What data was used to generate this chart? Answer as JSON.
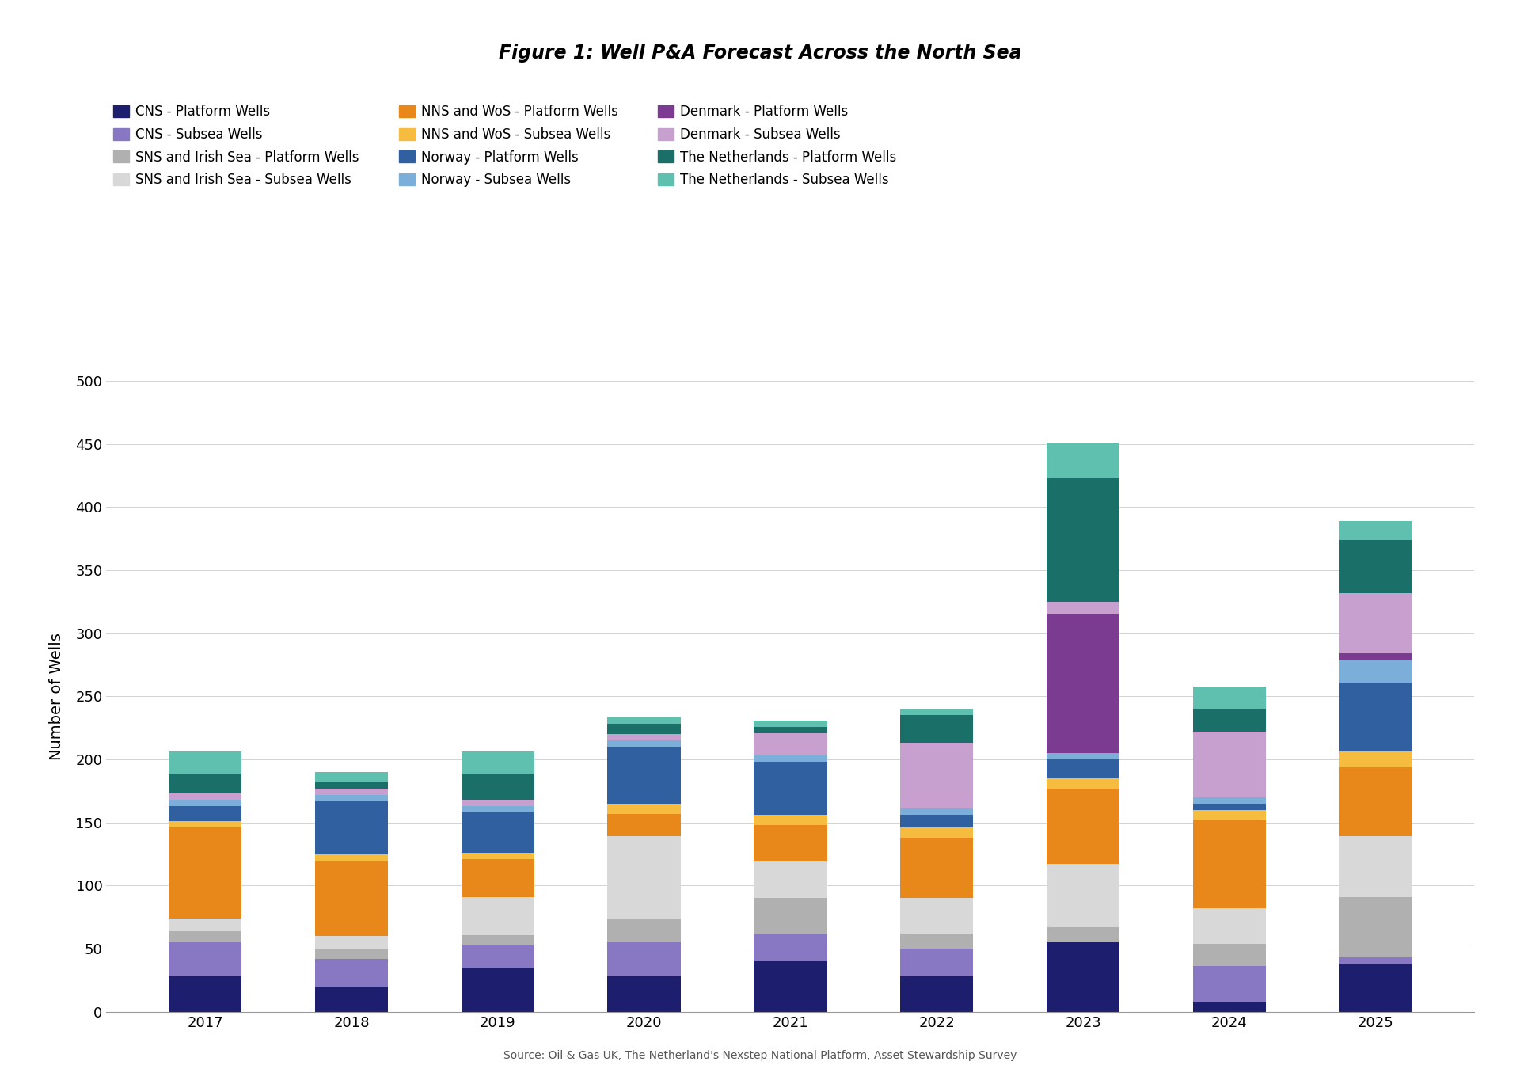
{
  "title": "Figure 1: Well P&A Forecast Across the North Sea",
  "ylabel": "Number of Wells",
  "source_text": "Source: Oil & Gas UK, The Netherland's Nexstep National Platform, Asset Stewardship Survey",
  "years": [
    2017,
    2018,
    2019,
    2020,
    2021,
    2022,
    2023,
    2024,
    2025
  ],
  "series": [
    {
      "label": "CNS - Platform Wells",
      "color": "#1e1e6e",
      "values": [
        28,
        20,
        35,
        28,
        40,
        28,
        55,
        8,
        38
      ]
    },
    {
      "label": "CNS - Subsea Wells",
      "color": "#8878c3",
      "values": [
        28,
        22,
        18,
        28,
        22,
        22,
        0,
        28,
        5
      ]
    },
    {
      "label": "SNS and Irish Sea - Platform Wells",
      "color": "#b0b0b0",
      "values": [
        8,
        8,
        8,
        18,
        28,
        12,
        12,
        18,
        48
      ]
    },
    {
      "label": "SNS and Irish Sea - Subsea Wells",
      "color": "#d8d8d8",
      "values": [
        10,
        10,
        30,
        65,
        30,
        28,
        50,
        28,
        48
      ]
    },
    {
      "label": "NNS and WoS - Platform Wells",
      "color": "#e8881a",
      "values": [
        72,
        60,
        30,
        18,
        28,
        48,
        60,
        70,
        55
      ]
    },
    {
      "label": "NNS and WoS - Subsea Wells",
      "color": "#f5bc40",
      "values": [
        5,
        5,
        5,
        8,
        8,
        8,
        8,
        8,
        12
      ]
    },
    {
      "label": "Norway - Platform Wells",
      "color": "#3060a0",
      "values": [
        12,
        42,
        32,
        45,
        42,
        10,
        15,
        5,
        55
      ]
    },
    {
      "label": "Norway - Subsea Wells",
      "color": "#7baed8",
      "values": [
        5,
        5,
        5,
        5,
        5,
        5,
        5,
        5,
        18
      ]
    },
    {
      "label": "Denmark - Platform Wells",
      "color": "#7b3b90",
      "values": [
        0,
        0,
        0,
        0,
        0,
        0,
        110,
        0,
        5
      ]
    },
    {
      "label": "Denmark - Subsea Wells",
      "color": "#c8a0d0",
      "values": [
        5,
        5,
        5,
        5,
        18,
        52,
        10,
        52,
        48
      ]
    },
    {
      "label": "The Netherlands - Platform Wells",
      "color": "#1a7068",
      "values": [
        15,
        5,
        20,
        8,
        5,
        22,
        98,
        18,
        42
      ]
    },
    {
      "label": "The Netherlands - Subsea Wells",
      "color": "#60c0b0",
      "values": [
        18,
        8,
        18,
        5,
        5,
        5,
        28,
        18,
        15
      ]
    }
  ],
  "ylim": [
    0,
    500
  ],
  "yticks": [
    0,
    50,
    100,
    150,
    200,
    250,
    300,
    350,
    400,
    450,
    500
  ],
  "background_color": "#ffffff",
  "title_fontsize": 17,
  "legend_fontsize": 12,
  "axis_label_fontsize": 14,
  "tick_fontsize": 13
}
